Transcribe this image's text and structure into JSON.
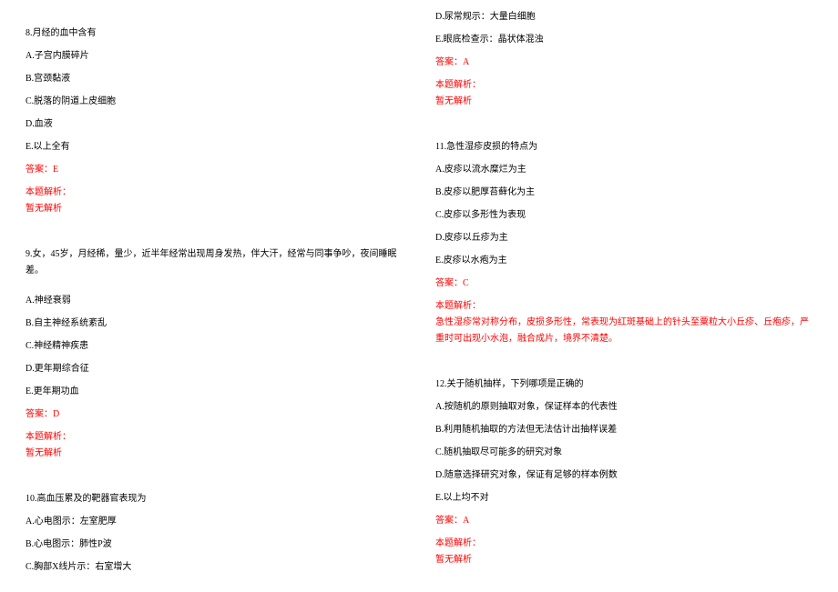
{
  "left": {
    "q8": {
      "stem": "8.月经的血中含有",
      "opts": [
        "A.子宫内膜碎片",
        "B.宫颈黏液",
        "C.脱落的阴道上皮细胞",
        "D.血液",
        "E.以上全有"
      ],
      "answer": "答案：E",
      "analysis_label": "本题解析：",
      "analysis_text": "暂无解析"
    },
    "q9": {
      "stem": "9.女，45岁，月经稀，量少，近半年经常出现周身发热，伴大汗，经常与同事争吵，夜间睡眠差。",
      "opts": [
        "A.神经衰弱",
        "B.自主神经系统紊乱",
        "C.神经精神疾患",
        "D.更年期综合征",
        "E.更年期功血"
      ],
      "answer": "答案：D",
      "analysis_label": "本题解析：",
      "analysis_text": "暂无解析"
    },
    "q10": {
      "stem": "10.高血压累及的靶器官表现为",
      "opts": [
        "A.心电图示：左室肥厚",
        "B.心电图示：肺性P波",
        "C.胸部X线片示：右室增大"
      ]
    }
  },
  "right": {
    "q10cont": {
      "opts": [
        "D.尿常规示：大量白细胞",
        "E.眼底检查示：晶状体混浊"
      ],
      "answer": "答案：A",
      "analysis_label": "本题解析：",
      "analysis_text": "暂无解析"
    },
    "q11": {
      "stem": "11.急性湿疹皮损的特点为",
      "opts": [
        "A.皮疹以流水糜烂为主",
        "B.皮疹以肥厚苔藓化为主",
        "C.皮疹以多形性为表现",
        "D.皮疹以丘疹为主",
        "E.皮疹以水疱为主"
      ],
      "answer": "答案：C",
      "analysis_label": "本题解析：",
      "analysis_text": "急性湿疹常对称分布，皮损多形性，常表现为红斑基础上的针头至粟粒大小丘疹、丘疱疹，严重时可出现小水泡，融合成片，境界不清楚。"
    },
    "q12": {
      "stem": "12.关于随机抽样，下列哪项是正确的",
      "opts": [
        "A.按随机的原则抽取对象，保证样本的代表性",
        "B.利用随机抽取的方法但无法估计出抽样误差",
        "C.随机抽取尽可能多的研究对象",
        "D.随意选择研究对象，保证有足够的样本例数",
        "E.以上均不对"
      ],
      "answer": "答案：A",
      "analysis_label": "本题解析：",
      "analysis_text": "暂无解析"
    }
  }
}
